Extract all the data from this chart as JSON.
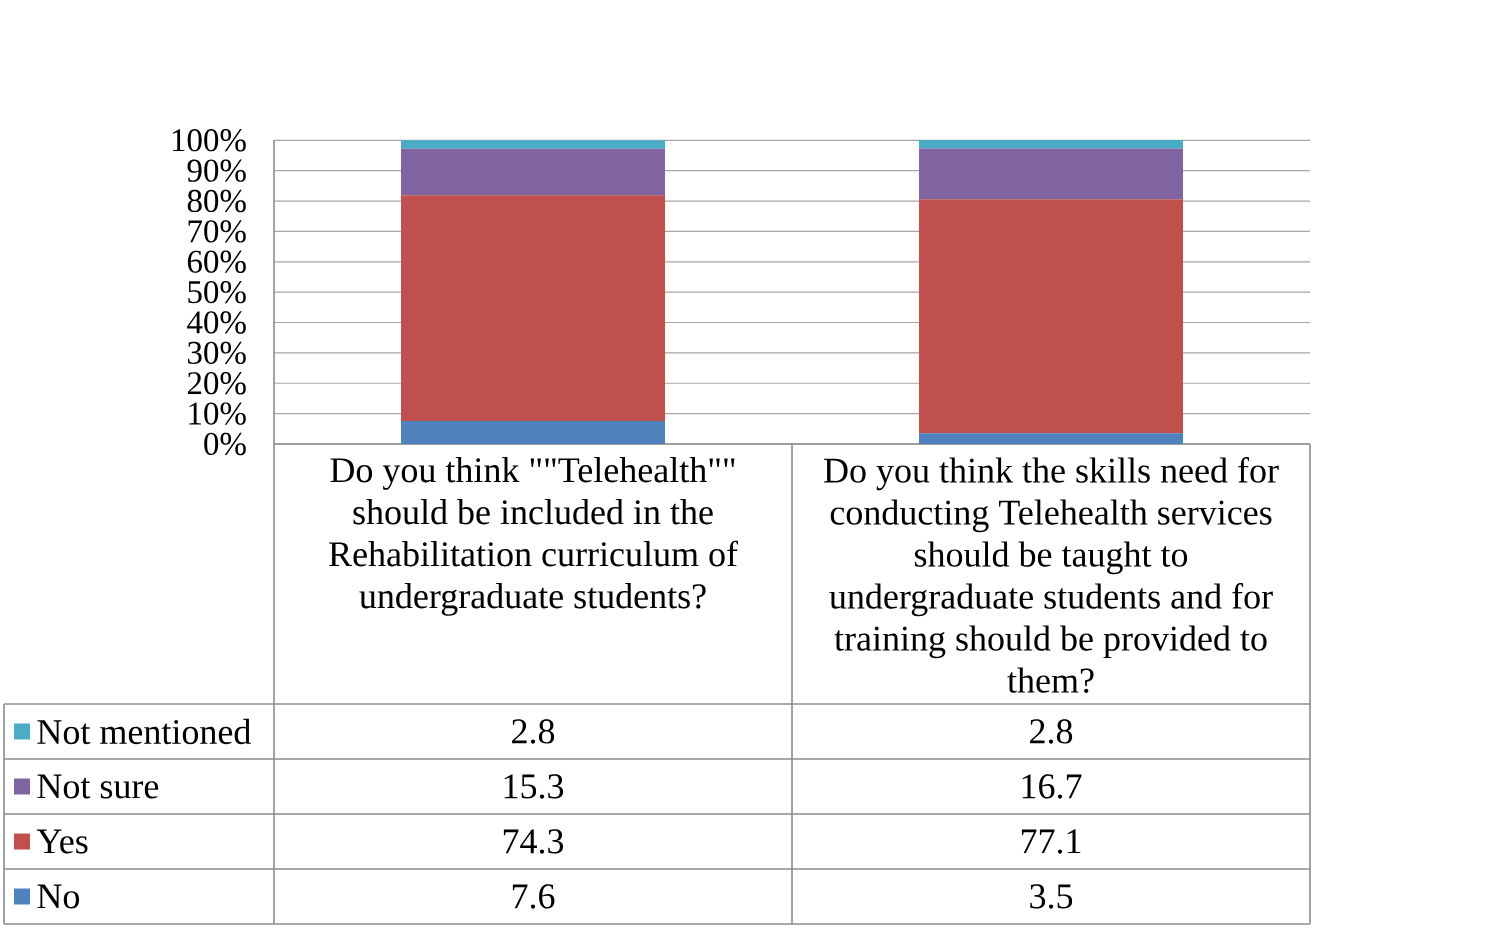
{
  "chart_data": {
    "type": "bar",
    "stacked": true,
    "categories": [
      "Do you think \"\"Telehealth\"\" should be included in the Rehabilitation curriculum of undergraduate students?",
      "Do you think the skills need for conducting Telehealth services should be taught to undergraduate students and for training should be provided to them?"
    ],
    "series": [
      {
        "name": "No",
        "color": "#4f81bd",
        "values": [
          7.6,
          3.5
        ]
      },
      {
        "name": "Yes",
        "color": "#c0504d",
        "values": [
          74.3,
          77.1
        ]
      },
      {
        "name": "Not sure",
        "color": "#8064a2",
        "values": [
          15.3,
          16.7
        ]
      },
      {
        "name": "Not mentioned",
        "color": "#4bacc6",
        "values": [
          2.8,
          2.8
        ]
      }
    ],
    "ylim": [
      0,
      100.1
    ],
    "yticks": [
      {
        "value": 0,
        "label": "0%"
      },
      {
        "value": 10,
        "label": "10%"
      },
      {
        "value": 20,
        "label": "20%"
      },
      {
        "value": 30,
        "label": "30%"
      },
      {
        "value": 40,
        "label": "40%"
      },
      {
        "value": 50,
        "label": "50%"
      },
      {
        "value": 60,
        "label": "60%"
      },
      {
        "value": 70,
        "label": "70%"
      },
      {
        "value": 80,
        "label": "80%"
      },
      {
        "value": 90,
        "label": "90%"
      },
      {
        "value": 100,
        "label": "100%"
      }
    ],
    "grid": "y",
    "legend": "bottom left",
    "data_labels": true
  }
}
